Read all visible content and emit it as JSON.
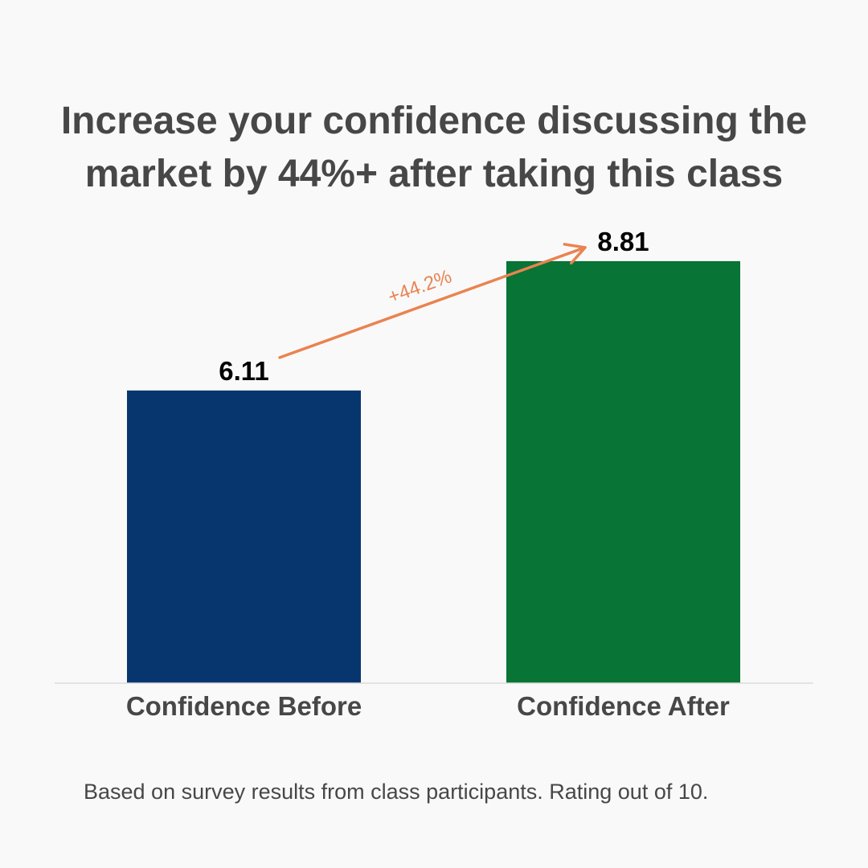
{
  "title_lines": [
    "Increase your confidence discussing the",
    "market by 44%+ after taking this class"
  ],
  "footnote": "Based on survey results from class participants. Rating out of 10.",
  "chart_data": {
    "type": "bar",
    "categories": [
      "Confidence Before",
      "Confidence After"
    ],
    "values": [
      6.11,
      8.81
    ],
    "value_labels": [
      "6.11",
      "8.81"
    ],
    "colors": [
      "#07366f",
      "#087435"
    ],
    "ylim": [
      0,
      10
    ],
    "grid": false,
    "xlabel": "",
    "ylabel": "",
    "annotation": {
      "text": "+44.2%",
      "from": "Confidence Before",
      "to": "Confidence After",
      "color": "#ea8350"
    }
  }
}
